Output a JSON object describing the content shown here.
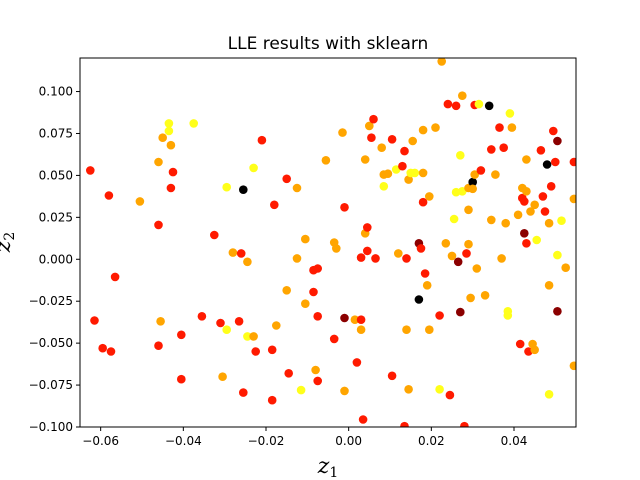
{
  "chart_data": {
    "type": "scatter",
    "title": "LLE results with sklearn",
    "xlabel": "z",
    "xlabel_sub": "1",
    "ylabel": "z",
    "ylabel_sub": "2",
    "xlim": [
      -0.065,
      0.055
    ],
    "ylim": [
      -0.1,
      0.12
    ],
    "xticks": [
      -0.06,
      -0.04,
      -0.02,
      0.0,
      0.02,
      0.04
    ],
    "xtick_labels": [
      "−0.06",
      "−0.04",
      "−0.02",
      "0.00",
      "0.02",
      "0.04"
    ],
    "yticks": [
      -0.1,
      -0.075,
      -0.05,
      -0.025,
      0.0,
      0.025,
      0.05,
      0.075,
      0.1
    ],
    "ytick_labels": [
      "−0.100",
      "−0.075",
      "−0.050",
      "−0.025",
      "0.000",
      "0.025",
      "0.050",
      "0.075",
      "0.100"
    ],
    "grid": false,
    "colormap": "hot",
    "colors": {
      "black": "#000000",
      "darkred": "#8b0000",
      "red": "#ff1a00",
      "orange": "#ffa500",
      "yellow": "#ffff1a"
    },
    "points": [
      {
        "x": -0.0625,
        "y": 0.053,
        "c": "red"
      },
      {
        "x": -0.0615,
        "y": -0.0365,
        "c": "red"
      },
      {
        "x": -0.0595,
        "y": -0.053,
        "c": "red"
      },
      {
        "x": -0.058,
        "y": 0.038,
        "c": "red"
      },
      {
        "x": -0.0575,
        "y": -0.055,
        "c": "red"
      },
      {
        "x": -0.0565,
        "y": -0.0105,
        "c": "red"
      },
      {
        "x": -0.0505,
        "y": 0.0345,
        "c": "orange"
      },
      {
        "x": -0.046,
        "y": 0.058,
        "c": "orange"
      },
      {
        "x": -0.046,
        "y": 0.0205,
        "c": "red"
      },
      {
        "x": -0.046,
        "y": -0.0515,
        "c": "red"
      },
      {
        "x": -0.0455,
        "y": -0.037,
        "c": "orange"
      },
      {
        "x": -0.045,
        "y": 0.0725,
        "c": "orange"
      },
      {
        "x": -0.0435,
        "y": 0.081,
        "c": "yellow"
      },
      {
        "x": -0.0435,
        "y": 0.0765,
        "c": "yellow"
      },
      {
        "x": -0.043,
        "y": 0.068,
        "c": "orange"
      },
      {
        "x": -0.043,
        "y": 0.0425,
        "c": "red"
      },
      {
        "x": -0.0425,
        "y": 0.052,
        "c": "red"
      },
      {
        "x": -0.0405,
        "y": -0.045,
        "c": "red"
      },
      {
        "x": -0.0405,
        "y": -0.0715,
        "c": "red"
      },
      {
        "x": -0.0375,
        "y": 0.081,
        "c": "yellow"
      },
      {
        "x": -0.0355,
        "y": -0.034,
        "c": "red"
      },
      {
        "x": -0.0325,
        "y": 0.0145,
        "c": "red"
      },
      {
        "x": -0.031,
        "y": -0.038,
        "c": "red"
      },
      {
        "x": -0.0305,
        "y": -0.07,
        "c": "orange"
      },
      {
        "x": -0.0295,
        "y": 0.043,
        "c": "yellow"
      },
      {
        "x": -0.0295,
        "y": -0.042,
        "c": "yellow"
      },
      {
        "x": -0.028,
        "y": 0.004,
        "c": "orange"
      },
      {
        "x": -0.0265,
        "y": -0.037,
        "c": "red"
      },
      {
        "x": -0.026,
        "y": 0.0035,
        "c": "red"
      },
      {
        "x": -0.0255,
        "y": 0.0415,
        "c": "black"
      },
      {
        "x": -0.0255,
        "y": -0.0795,
        "c": "red"
      },
      {
        "x": -0.0245,
        "y": -0.0015,
        "c": "orange"
      },
      {
        "x": -0.0245,
        "y": -0.046,
        "c": "yellow"
      },
      {
        "x": -0.023,
        "y": -0.046,
        "c": "orange"
      },
      {
        "x": -0.023,
        "y": 0.0545,
        "c": "yellow"
      },
      {
        "x": -0.0225,
        "y": -0.055,
        "c": "red"
      },
      {
        "x": -0.021,
        "y": 0.071,
        "c": "red"
      },
      {
        "x": -0.0185,
        "y": -0.054,
        "c": "red"
      },
      {
        "x": -0.0185,
        "y": -0.084,
        "c": "red"
      },
      {
        "x": -0.018,
        "y": 0.0325,
        "c": "red"
      },
      {
        "x": -0.0175,
        "y": -0.0395,
        "c": "orange"
      },
      {
        "x": -0.015,
        "y": 0.048,
        "c": "red"
      },
      {
        "x": -0.015,
        "y": -0.0185,
        "c": "orange"
      },
      {
        "x": -0.0145,
        "y": -0.068,
        "c": "red"
      },
      {
        "x": -0.0125,
        "y": 0.0005,
        "c": "orange"
      },
      {
        "x": -0.0125,
        "y": 0.0425,
        "c": "orange"
      },
      {
        "x": -0.0115,
        "y": -0.078,
        "c": "yellow"
      },
      {
        "x": -0.0105,
        "y": 0.012,
        "c": "orange"
      },
      {
        "x": -0.0105,
        "y": -0.0265,
        "c": "orange"
      },
      {
        "x": -0.0085,
        "y": -0.0065,
        "c": "red"
      },
      {
        "x": -0.0085,
        "y": -0.0195,
        "c": "red"
      },
      {
        "x": -0.008,
        "y": -0.066,
        "c": "orange"
      },
      {
        "x": -0.0075,
        "y": -0.0055,
        "c": "red"
      },
      {
        "x": -0.0075,
        "y": -0.034,
        "c": "red"
      },
      {
        "x": -0.0075,
        "y": -0.0725,
        "c": "red"
      },
      {
        "x": -0.0055,
        "y": 0.059,
        "c": "orange"
      },
      {
        "x": -0.0035,
        "y": 0.01,
        "c": "orange"
      },
      {
        "x": -0.0035,
        "y": -0.0475,
        "c": "red"
      },
      {
        "x": -0.003,
        "y": 0.0065,
        "c": "orange"
      },
      {
        "x": -0.0015,
        "y": 0.0755,
        "c": "orange"
      },
      {
        "x": -0.001,
        "y": 0.031,
        "c": "red"
      },
      {
        "x": -0.001,
        "y": -0.0785,
        "c": "orange"
      },
      {
        "x": -0.001,
        "y": -0.035,
        "c": "darkred"
      },
      {
        "x": 0.0015,
        "y": -0.036,
        "c": "orange"
      },
      {
        "x": 0.002,
        "y": -0.0615,
        "c": "red"
      },
      {
        "x": 0.003,
        "y": 0.001,
        "c": "red"
      },
      {
        "x": 0.003,
        "y": -0.036,
        "c": "red"
      },
      {
        "x": 0.003,
        "y": -0.042,
        "c": "orange"
      },
      {
        "x": 0.0035,
        "y": -0.0955,
        "c": "red"
      },
      {
        "x": 0.004,
        "y": 0.0595,
        "c": "orange"
      },
      {
        "x": 0.004,
        "y": 0.0155,
        "c": "orange"
      },
      {
        "x": 0.0045,
        "y": 0.019,
        "c": "red"
      },
      {
        "x": 0.0045,
        "y": 0.005,
        "c": "red"
      },
      {
        "x": 0.005,
        "y": 0.0795,
        "c": "orange"
      },
      {
        "x": 0.0055,
        "y": 0.0725,
        "c": "red"
      },
      {
        "x": 0.006,
        "y": 0.0835,
        "c": "red"
      },
      {
        "x": 0.0065,
        "y": 0.0005,
        "c": "red"
      },
      {
        "x": 0.008,
        "y": 0.0665,
        "c": "orange"
      },
      {
        "x": 0.0085,
        "y": 0.0505,
        "c": "orange"
      },
      {
        "x": 0.0085,
        "y": 0.0435,
        "c": "yellow"
      },
      {
        "x": 0.0095,
        "y": 0.051,
        "c": "orange"
      },
      {
        "x": 0.0105,
        "y": -0.0695,
        "c": "red"
      },
      {
        "x": 0.0105,
        "y": 0.0715,
        "c": "red"
      },
      {
        "x": 0.0115,
        "y": 0.0535,
        "c": "yellow"
      },
      {
        "x": 0.012,
        "y": 0.0035,
        "c": "orange"
      },
      {
        "x": 0.013,
        "y": 0.0555,
        "c": "red"
      },
      {
        "x": 0.0135,
        "y": 0.0645,
        "c": "red"
      },
      {
        "x": 0.0135,
        "y": -0.0995,
        "c": "red"
      },
      {
        "x": 0.014,
        "y": 0.0005,
        "c": "red"
      },
      {
        "x": 0.014,
        "y": -0.042,
        "c": "orange"
      },
      {
        "x": 0.0145,
        "y": 0.0475,
        "c": "orange"
      },
      {
        "x": 0.0145,
        "y": -0.0775,
        "c": "orange"
      },
      {
        "x": 0.015,
        "y": 0.0515,
        "c": "yellow"
      },
      {
        "x": 0.0155,
        "y": 0.0705,
        "c": "orange"
      },
      {
        "x": 0.016,
        "y": 0.0515,
        "c": "yellow"
      },
      {
        "x": 0.017,
        "y": 0.0095,
        "c": "darkred"
      },
      {
        "x": 0.017,
        "y": -0.024,
        "c": "black"
      },
      {
        "x": 0.0175,
        "y": 0.0065,
        "c": "red"
      },
      {
        "x": 0.018,
        "y": 0.034,
        "c": "red"
      },
      {
        "x": 0.018,
        "y": 0.0515,
        "c": "orange"
      },
      {
        "x": 0.018,
        "y": 0.077,
        "c": "orange"
      },
      {
        "x": 0.0185,
        "y": -0.0085,
        "c": "red"
      },
      {
        "x": 0.019,
        "y": -0.0155,
        "c": "orange"
      },
      {
        "x": 0.0195,
        "y": -0.042,
        "c": "orange"
      },
      {
        "x": 0.0195,
        "y": 0.0375,
        "c": "orange"
      },
      {
        "x": 0.021,
        "y": 0.0785,
        "c": "orange"
      },
      {
        "x": 0.022,
        "y": -0.0335,
        "c": "red"
      },
      {
        "x": 0.022,
        "y": -0.0775,
        "c": "yellow"
      },
      {
        "x": 0.0225,
        "y": 0.118,
        "c": "orange"
      },
      {
        "x": 0.0235,
        "y": 0.0095,
        "c": "orange"
      },
      {
        "x": 0.024,
        "y": 0.0925,
        "c": "red"
      },
      {
        "x": 0.0245,
        "y": -0.081,
        "c": "red"
      },
      {
        "x": 0.025,
        "y": 0.002,
        "c": "orange"
      },
      {
        "x": 0.0255,
        "y": 0.024,
        "c": "yellow"
      },
      {
        "x": 0.026,
        "y": 0.0915,
        "c": "red"
      },
      {
        "x": 0.026,
        "y": 0.04,
        "c": "yellow"
      },
      {
        "x": 0.0265,
        "y": -0.0015,
        "c": "darkred"
      },
      {
        "x": 0.027,
        "y": -0.0315,
        "c": "darkred"
      },
      {
        "x": 0.027,
        "y": 0.062,
        "c": "yellow"
      },
      {
        "x": 0.0275,
        "y": 0.0975,
        "c": "orange"
      },
      {
        "x": 0.0275,
        "y": 0.0405,
        "c": "yellow"
      },
      {
        "x": 0.028,
        "y": -0.0995,
        "c": "red"
      },
      {
        "x": 0.0285,
        "y": 0.0035,
        "c": "red"
      },
      {
        "x": 0.029,
        "y": 0.0425,
        "c": "orange"
      },
      {
        "x": 0.029,
        "y": 0.0295,
        "c": "orange"
      },
      {
        "x": 0.029,
        "y": 0.009,
        "c": "orange"
      },
      {
        "x": 0.0295,
        "y": -0.023,
        "c": "orange"
      },
      {
        "x": 0.03,
        "y": 0.046,
        "c": "black"
      },
      {
        "x": 0.0305,
        "y": 0.092,
        "c": "red"
      },
      {
        "x": 0.0305,
        "y": 0.0505,
        "c": "orange"
      },
      {
        "x": 0.03,
        "y": 0.042,
        "c": "orange"
      },
      {
        "x": 0.031,
        "y": -0.0055,
        "c": "orange"
      },
      {
        "x": 0.0315,
        "y": 0.0925,
        "c": "yellow"
      },
      {
        "x": 0.032,
        "y": 0.053,
        "c": "red"
      },
      {
        "x": 0.033,
        "y": -0.0215,
        "c": "orange"
      },
      {
        "x": 0.034,
        "y": 0.0915,
        "c": "black"
      },
      {
        "x": 0.0345,
        "y": 0.0235,
        "c": "orange"
      },
      {
        "x": 0.0345,
        "y": 0.0655,
        "c": "red"
      },
      {
        "x": 0.0355,
        "y": 0.0505,
        "c": "orange"
      },
      {
        "x": 0.0365,
        "y": 0.0785,
        "c": "red"
      },
      {
        "x": 0.037,
        "y": 0.0005,
        "c": "orange"
      },
      {
        "x": 0.0375,
        "y": 0.0665,
        "c": "red"
      },
      {
        "x": 0.038,
        "y": 0.0215,
        "c": "orange"
      },
      {
        "x": 0.0385,
        "y": -0.031,
        "c": "yellow"
      },
      {
        "x": 0.0385,
        "y": -0.0335,
        "c": "yellow"
      },
      {
        "x": 0.039,
        "y": 0.087,
        "c": "yellow"
      },
      {
        "x": 0.0395,
        "y": 0.0785,
        "c": "orange"
      },
      {
        "x": 0.041,
        "y": 0.0265,
        "c": "orange"
      },
      {
        "x": 0.0415,
        "y": -0.0505,
        "c": "red"
      },
      {
        "x": 0.042,
        "y": 0.0425,
        "c": "orange"
      },
      {
        "x": 0.042,
        "y": 0.0365,
        "c": "red"
      },
      {
        "x": 0.0425,
        "y": 0.0155,
        "c": "darkred"
      },
      {
        "x": 0.0425,
        "y": 0.0345,
        "c": "red"
      },
      {
        "x": 0.043,
        "y": 0.0595,
        "c": "orange"
      },
      {
        "x": 0.043,
        "y": 0.0405,
        "c": "orange"
      },
      {
        "x": 0.043,
        "y": 0.0095,
        "c": "red"
      },
      {
        "x": 0.0435,
        "y": -0.055,
        "c": "red"
      },
      {
        "x": 0.044,
        "y": 0.0285,
        "c": "orange"
      },
      {
        "x": 0.0445,
        "y": -0.0505,
        "c": "orange"
      },
      {
        "x": 0.045,
        "y": 0.0325,
        "c": "orange"
      },
      {
        "x": 0.045,
        "y": -0.054,
        "c": "orange"
      },
      {
        "x": 0.0455,
        "y": 0.0115,
        "c": "yellow"
      },
      {
        "x": 0.0465,
        "y": 0.065,
        "c": "red"
      },
      {
        "x": 0.047,
        "y": 0.0375,
        "c": "red"
      },
      {
        "x": 0.0475,
        "y": 0.0285,
        "c": "red"
      },
      {
        "x": 0.048,
        "y": 0.0565,
        "c": "black"
      },
      {
        "x": 0.0485,
        "y": 0.0215,
        "c": "orange"
      },
      {
        "x": 0.0485,
        "y": -0.0155,
        "c": "orange"
      },
      {
        "x": 0.0485,
        "y": -0.0805,
        "c": "yellow"
      },
      {
        "x": 0.049,
        "y": 0.0435,
        "c": "red"
      },
      {
        "x": 0.0495,
        "y": 0.0765,
        "c": "red"
      },
      {
        "x": 0.05,
        "y": 0.058,
        "c": "red"
      },
      {
        "x": 0.0505,
        "y": 0.0705,
        "c": "darkred"
      },
      {
        "x": 0.0505,
        "y": 0.0025,
        "c": "yellow"
      },
      {
        "x": 0.0505,
        "y": -0.031,
        "c": "darkred"
      },
      {
        "x": 0.0515,
        "y": 0.023,
        "c": "yellow"
      },
      {
        "x": 0.0525,
        "y": -0.005,
        "c": "orange"
      },
      {
        "x": 0.0545,
        "y": 0.058,
        "c": "red"
      },
      {
        "x": 0.0545,
        "y": 0.036,
        "c": "orange"
      },
      {
        "x": 0.0545,
        "y": -0.0635,
        "c": "orange"
      }
    ]
  }
}
